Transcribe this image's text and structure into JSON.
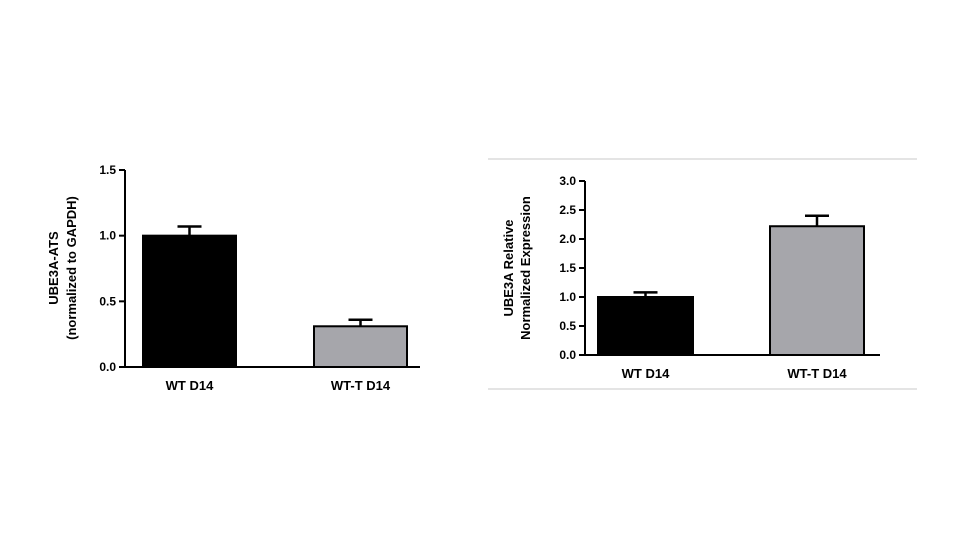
{
  "chart_data": [
    {
      "type": "bar",
      "categories": [
        "WT D14",
        "WT-T D14"
      ],
      "values": [
        1.0,
        0.31
      ],
      "errors": [
        0.07,
        0.05
      ],
      "colors": [
        "#000000",
        "#a6a6ab"
      ],
      "ylabel_lines": [
        "UBE3A-ATS",
        "(normalized to GAPDH)"
      ],
      "ylim": [
        0,
        1.5
      ],
      "yticks": [
        "0.0",
        "0.5",
        "1.0",
        "1.5"
      ],
      "ytick_values": [
        0,
        0.5,
        1.0,
        1.5
      ],
      "grid": false
    },
    {
      "type": "bar",
      "categories": [
        "WT D14",
        "WT-T D14"
      ],
      "values": [
        1.0,
        2.22
      ],
      "errors": [
        0.08,
        0.18
      ],
      "colors": [
        "#000000",
        "#a6a6ab"
      ],
      "ylabel_lines": [
        "UBE3A Relative",
        "Normalized Expression"
      ],
      "ylim": [
        0,
        3.0
      ],
      "yticks": [
        "0.0",
        "0.5",
        "1.0",
        "1.5",
        "2.0",
        "2.5",
        "3.0"
      ],
      "ytick_values": [
        0,
        0.5,
        1.0,
        1.5,
        2.0,
        2.5,
        3.0
      ],
      "grid": false
    }
  ]
}
